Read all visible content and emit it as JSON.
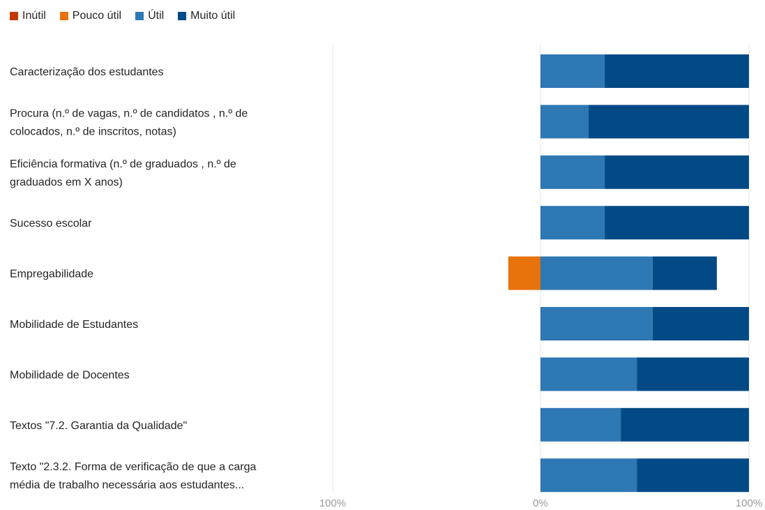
{
  "chart_data": {
    "type": "bar",
    "orientation": "horizontal",
    "stacked": "diverging",
    "title": "",
    "legend_position": "top-left",
    "legend": [
      {
        "name": "Inútil",
        "color": "#C23A08"
      },
      {
        "name": "Pouco útil",
        "color": "#E8720C"
      },
      {
        "name": "Útil",
        "color": "#2E78B4"
      },
      {
        "name": "Muito útil",
        "color": "#024A86"
      }
    ],
    "categories": [
      "Caracterização dos estudantes",
      "Procura (n.º de vagas, n.º de candidatos , n.º de colocados, n.º de inscritos, notas)",
      "Eficiência formativa (n.º de graduados , n.º de graduados em X anos)",
      "Sucesso escolar",
      "Empregabilidade",
      "Mobilidade de Estudantes",
      "Mobilidade de Docentes",
      "Textos \"7.2. Garantia da Qualidade\"",
      "Texto \"2.3.2. Forma de verificação de que a carga média de trabalho necessária aos estudantes..."
    ],
    "category_lines": [
      [
        "Caracterização dos estudantes"
      ],
      [
        "Procura (n.º de vagas, n.º de candidatos , n.º de",
        "colocados, n.º de inscritos, notas)"
      ],
      [
        "Eficiência formativa (n.º de graduados , n.º de",
        "graduados em X anos)"
      ],
      [
        "Sucesso escolar"
      ],
      [
        "Empregabilidade"
      ],
      [
        "Mobilidade de Estudantes"
      ],
      [
        "Mobilidade de Docentes"
      ],
      [
        "Textos \"7.2. Garantia da Qualidade\""
      ],
      [
        "Texto \"2.3.2. Forma de verificação de que a carga",
        "média de trabalho necessária aos estudantes..."
      ]
    ],
    "series": [
      {
        "name": "Inútil",
        "values": [
          0,
          0,
          0,
          0,
          0,
          0,
          0,
          0,
          0
        ]
      },
      {
        "name": "Pouco útil",
        "values": [
          0,
          0,
          0,
          0,
          15.4,
          0,
          0,
          0,
          0
        ]
      },
      {
        "name": "Útil",
        "values": [
          30.8,
          23.1,
          30.8,
          30.8,
          53.8,
          53.8,
          46.2,
          38.5,
          46.2
        ]
      },
      {
        "name": "Muito útil",
        "values": [
          69.2,
          76.9,
          69.2,
          69.2,
          30.8,
          46.2,
          53.8,
          61.5,
          53.8
        ]
      }
    ],
    "xlim": [
      -100,
      100
    ],
    "x_ticks": [
      "100%",
      "0%",
      "100%"
    ],
    "grid": true
  }
}
